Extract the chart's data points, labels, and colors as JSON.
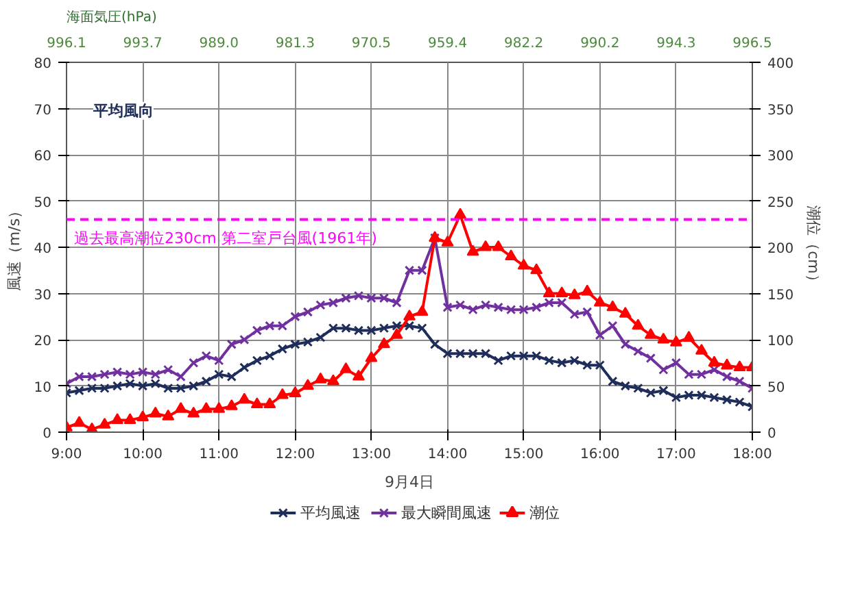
{
  "chart_data": {
    "type": "line",
    "xlabel": "9月4日",
    "ylabel": "風速（m/s）",
    "y2label": "潮位（cm）",
    "annotations": [
      "平均風向",
      "海面気圧(hPa)",
      "996.1",
      "993.7",
      "989.0",
      "981.3",
      "970.5",
      "959.4",
      "982.2",
      "990.2",
      "994.3",
      "996.5"
    ],
    "x": [
      9,
      9.1667,
      9.3333,
      9.5,
      9.6667,
      9.8333,
      10,
      10.1667,
      10.3333,
      10.5,
      10.6667,
      10.8333,
      11,
      11.1667,
      11.3333,
      11.5,
      11.6667,
      11.8333,
      12,
      12.1667,
      12.3333,
      12.5,
      12.6667,
      12.8333,
      13,
      13.1667,
      13.3333,
      13.5,
      13.6667,
      13.8333,
      14,
      14.1667,
      14.3333,
      14.5,
      14.6667,
      14.8333,
      15,
      15.1667,
      15.3333,
      15.5,
      15.6667,
      15.8333,
      16,
      16.1667,
      16.3333,
      16.5,
      16.6667,
      16.8333,
      17,
      17.1667,
      17.3333,
      17.5,
      17.6667,
      17.8333,
      18
    ],
    "series": [
      {
        "name": "平均風速",
        "color": "#1f2d5a",
        "marker": "cross",
        "values": [
          8.5,
          9,
          9.5,
          9.5,
          10,
          10.5,
          10,
          10.5,
          9.5,
          9.5,
          10,
          11,
          12.5,
          12,
          14,
          15.5,
          16.5,
          18,
          19,
          19.5,
          20.5,
          22.5,
          22.5,
          22,
          22,
          22.5,
          23,
          23,
          22.5,
          19,
          17,
          17,
          17,
          17,
          15.5,
          16.5,
          16.5,
          16.5,
          15.5,
          15,
          15.5,
          14.5,
          14.5,
          11,
          10,
          9.5,
          8.5,
          9,
          7.5,
          8,
          8,
          7.5,
          7,
          6.5,
          5.5
        ]
      },
      {
        "name": "最大瞬間風速",
        "color": "#7030a0",
        "marker": "cross",
        "values": [
          10.5,
          12,
          12,
          12.5,
          13,
          12.5,
          13,
          12.5,
          13.5,
          12,
          15,
          16.5,
          15.5,
          19,
          20,
          22,
          23,
          23,
          25,
          26,
          27.5,
          28,
          29,
          29.5,
          29,
          29,
          28,
          35,
          35,
          42,
          27,
          27.5,
          26.5,
          27.5,
          27,
          26.5,
          26.5,
          27,
          28,
          28,
          25.5,
          26,
          21,
          23,
          19,
          17.5,
          16,
          13.5,
          15,
          12.5,
          12.5,
          13.5,
          12,
          11,
          9.5
        ]
      },
      {
        "name": "潮位",
        "color": "#ff0000",
        "marker": "triangle",
        "axis": "y2",
        "values": [
          5,
          10,
          3,
          8,
          13,
          13,
          16,
          20,
          17,
          25,
          20,
          25,
          25,
          28,
          35,
          30,
          30,
          40,
          42,
          50,
          57,
          55,
          68,
          60,
          80,
          95,
          105,
          125,
          130,
          210,
          205,
          235,
          195,
          200,
          200,
          190,
          180,
          175,
          150,
          150,
          148,
          152,
          140,
          135,
          128,
          115,
          105,
          100,
          97,
          102,
          88,
          75,
          72,
          70,
          70
        ]
      }
    ],
    "xlim": [
      9,
      18
    ],
    "xticks": [
      {
        "value": 9,
        "label": "9:00"
      },
      {
        "value": 10,
        "label": "10:00"
      },
      {
        "value": 11,
        "label": "11:00"
      },
      {
        "value": 12,
        "label": "12:00"
      },
      {
        "value": 13,
        "label": "13:00"
      },
      {
        "value": 14,
        "label": "14:00"
      },
      {
        "value": 15,
        "label": "15:00"
      },
      {
        "value": 16,
        "label": "16:00"
      },
      {
        "value": 17,
        "label": "17:00"
      },
      {
        "value": 18,
        "label": "18:00"
      }
    ],
    "ylim": [
      0,
      80
    ],
    "yticks": [
      0,
      10,
      20,
      30,
      40,
      50,
      60,
      70,
      80
    ],
    "y2lim": [
      0,
      400
    ],
    "y2ticks": [
      0,
      50,
      100,
      150,
      200,
      250,
      300,
      350,
      400
    ],
    "ref_lines": [
      {
        "axis": "y2",
        "value": 230,
        "label": "過去最高潮位230cm 第二室戸台風(1961年)",
        "color": "#ff00ff",
        "line_style": "dashed"
      }
    ],
    "grid": true,
    "legend": "bottom",
    "line_style": "solid"
  }
}
